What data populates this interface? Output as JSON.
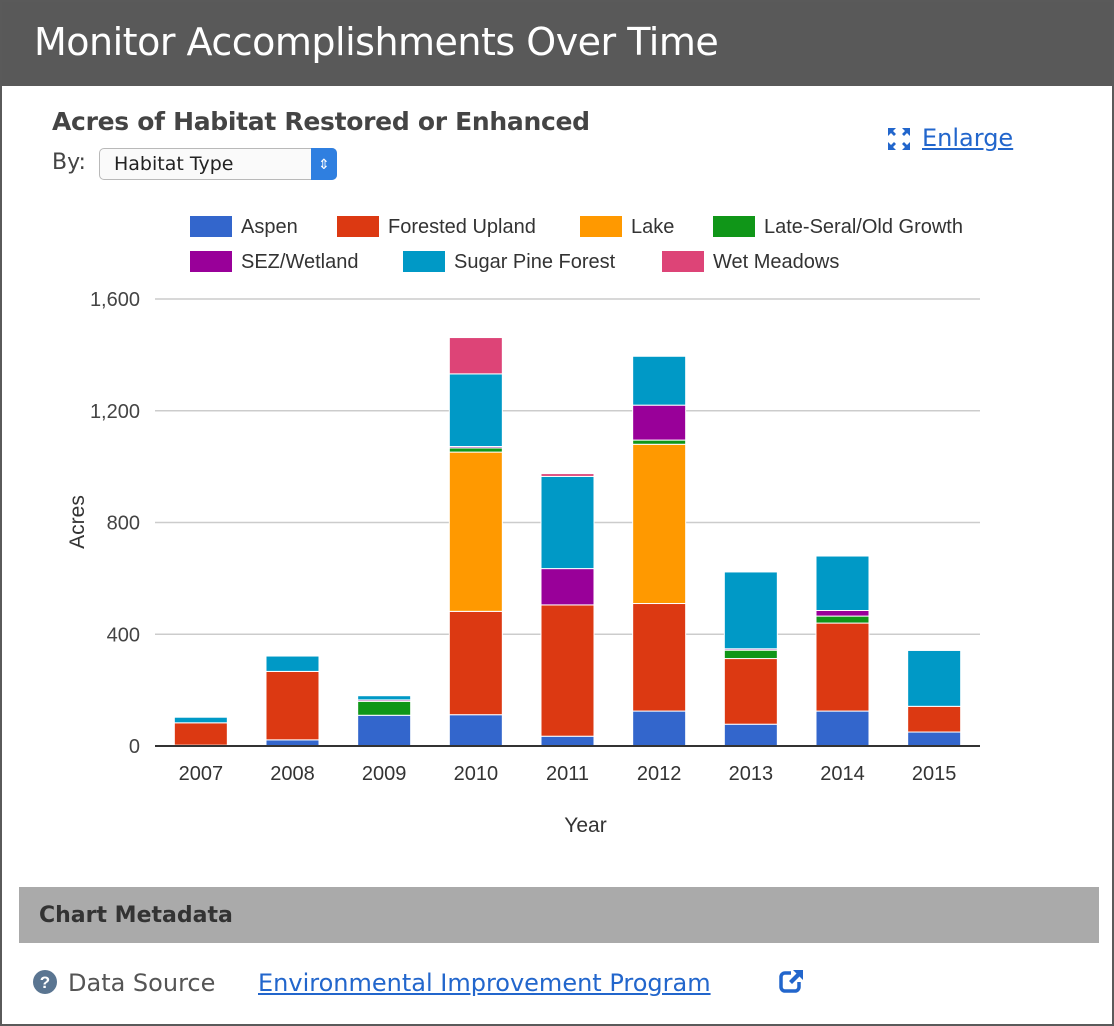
{
  "header": {
    "title": "Monitor Accomplishments Over Time"
  },
  "chart_panel": {
    "title": "Acres of Habitat Restored or Enhanced",
    "by_label": "By:",
    "by_select_value": "Habitat Type",
    "enlarge_label": "Enlarge",
    "enlarge_icon": "expand-icon"
  },
  "chart_data": {
    "type": "bar",
    "stacked": true,
    "xlabel": "Year",
    "ylabel": "Acres",
    "ylim": [
      0,
      1600
    ],
    "yticks": [
      0,
      400,
      800,
      1200,
      1600
    ],
    "ytick_labels": [
      "0",
      "400",
      "800",
      "1,200",
      "1,600"
    ],
    "grid": true,
    "legend_position": "top",
    "categories": [
      "2007",
      "2008",
      "2009",
      "2010",
      "2011",
      "2012",
      "2013",
      "2014",
      "2015"
    ],
    "series": [
      {
        "name": "Aspen",
        "color": "#3366cc",
        "values": [
          3,
          22,
          110,
          112,
          35,
          125,
          78,
          125,
          50
        ]
      },
      {
        "name": "Forested Upland",
        "color": "#dc3912",
        "values": [
          80,
          245,
          0,
          370,
          470,
          385,
          235,
          315,
          92
        ]
      },
      {
        "name": "Lake",
        "color": "#ff9900",
        "values": [
          0,
          0,
          0,
          570,
          0,
          570,
          0,
          0,
          0
        ]
      },
      {
        "name": "Late-Seral/Old Growth",
        "color": "#109618",
        "values": [
          0,
          0,
          50,
          15,
          0,
          15,
          30,
          25,
          0
        ]
      },
      {
        "name": "SEZ/Wetland",
        "color": "#990099",
        "values": [
          0,
          0,
          5,
          5,
          130,
          125,
          5,
          20,
          0
        ]
      },
      {
        "name": "Sugar Pine Forest",
        "color": "#0099c6",
        "values": [
          20,
          55,
          15,
          260,
          330,
          175,
          275,
          195,
          200
        ]
      },
      {
        "name": "Wet Meadows",
        "color": "#dd4477",
        "values": [
          0,
          0,
          0,
          130,
          10,
          0,
          0,
          0,
          0
        ]
      }
    ]
  },
  "metadata": {
    "title": "Chart Metadata",
    "help_icon": "question-circle-icon",
    "source_label": "Data Source",
    "source_link": "Environmental Improvement Program",
    "external_icon": "external-link-icon"
  }
}
